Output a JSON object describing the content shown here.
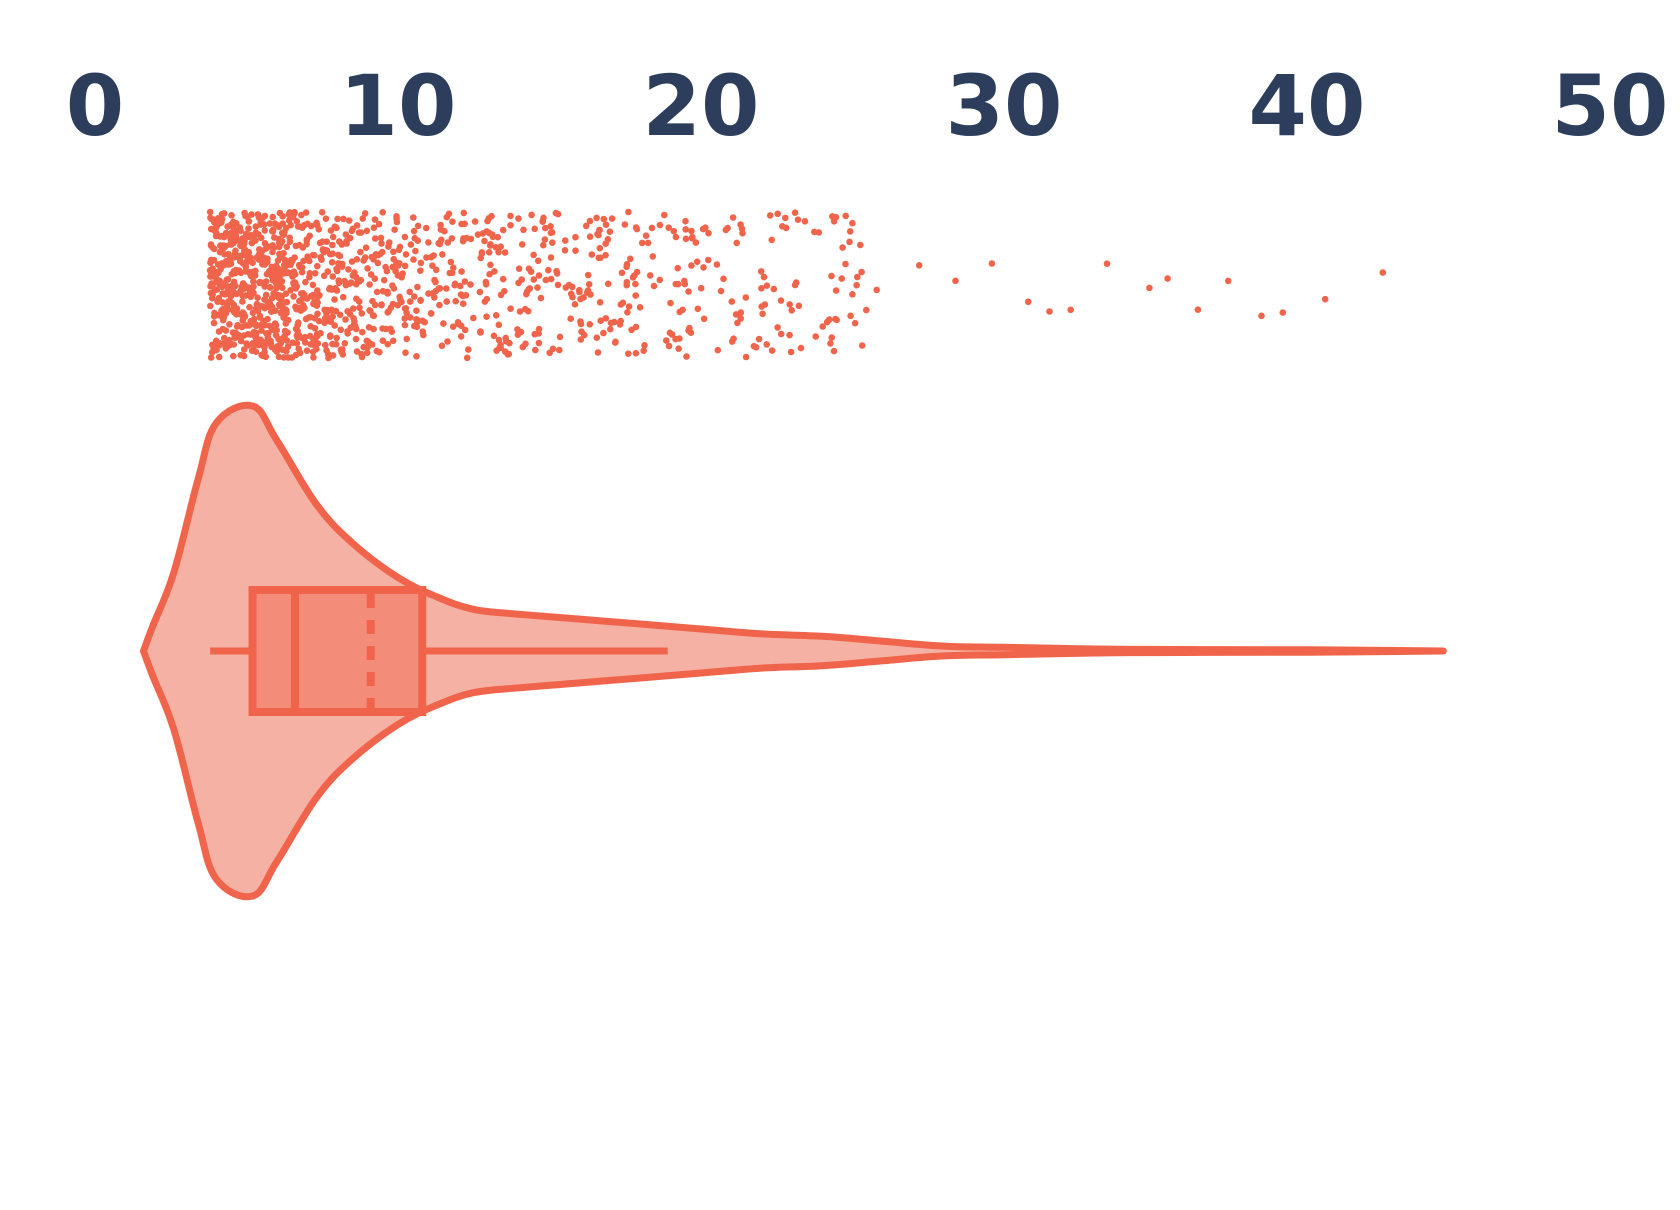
{
  "chart_data": {
    "type": "violin",
    "title": "",
    "xlabel": "",
    "ylabel": "",
    "xlim": [
      0,
      50
    ],
    "axis_position": "top",
    "grid": false,
    "legend": "none",
    "x_ticks": [
      0,
      10,
      20,
      30,
      40,
      50
    ],
    "x_tick_labels": [
      "0",
      "10",
      "20",
      "30",
      "40",
      "50"
    ],
    "colors": {
      "accent": "#F0644B",
      "violin_fill": "#F6B1A5",
      "box_fill": "#F38C79",
      "tick_text": "#2C3E5C"
    },
    "box": {
      "whisker_low": 3.8,
      "q1": 5.2,
      "median": 6.6,
      "mean": 9.1,
      "q3": 10.8,
      "whisker_high": 18.9
    },
    "density_profile": [
      [
        1.6,
        0.0
      ],
      [
        1.9,
        0.1
      ],
      [
        2.6,
        0.32
      ],
      [
        3.4,
        0.7
      ],
      [
        4.0,
        0.93
      ],
      [
        5.2,
        1.0
      ],
      [
        6.0,
        0.86
      ],
      [
        7.3,
        0.6
      ],
      [
        8.5,
        0.44
      ],
      [
        10.0,
        0.3
      ],
      [
        11.3,
        0.22
      ],
      [
        12.5,
        0.17
      ],
      [
        14.0,
        0.15
      ],
      [
        16.0,
        0.13
      ],
      [
        18.0,
        0.11
      ],
      [
        20.0,
        0.09
      ],
      [
        22.0,
        0.07
      ],
      [
        24.0,
        0.06
      ],
      [
        26.0,
        0.04
      ],
      [
        28.0,
        0.02
      ],
      [
        30.0,
        0.015
      ],
      [
        33.0,
        0.008
      ],
      [
        36.0,
        0.006
      ],
      [
        40.0,
        0.005
      ],
      [
        44.5,
        0.0
      ]
    ],
    "points_summary": {
      "min": 3.8,
      "max": 42.5,
      "outliers": [
        25.8,
        27.2,
        28.4,
        29.6,
        30.8,
        31.5,
        32.2,
        33.4,
        34.8,
        35.4,
        36.4,
        37.4,
        38.5,
        39.2,
        40.6,
        42.5
      ]
    }
  }
}
